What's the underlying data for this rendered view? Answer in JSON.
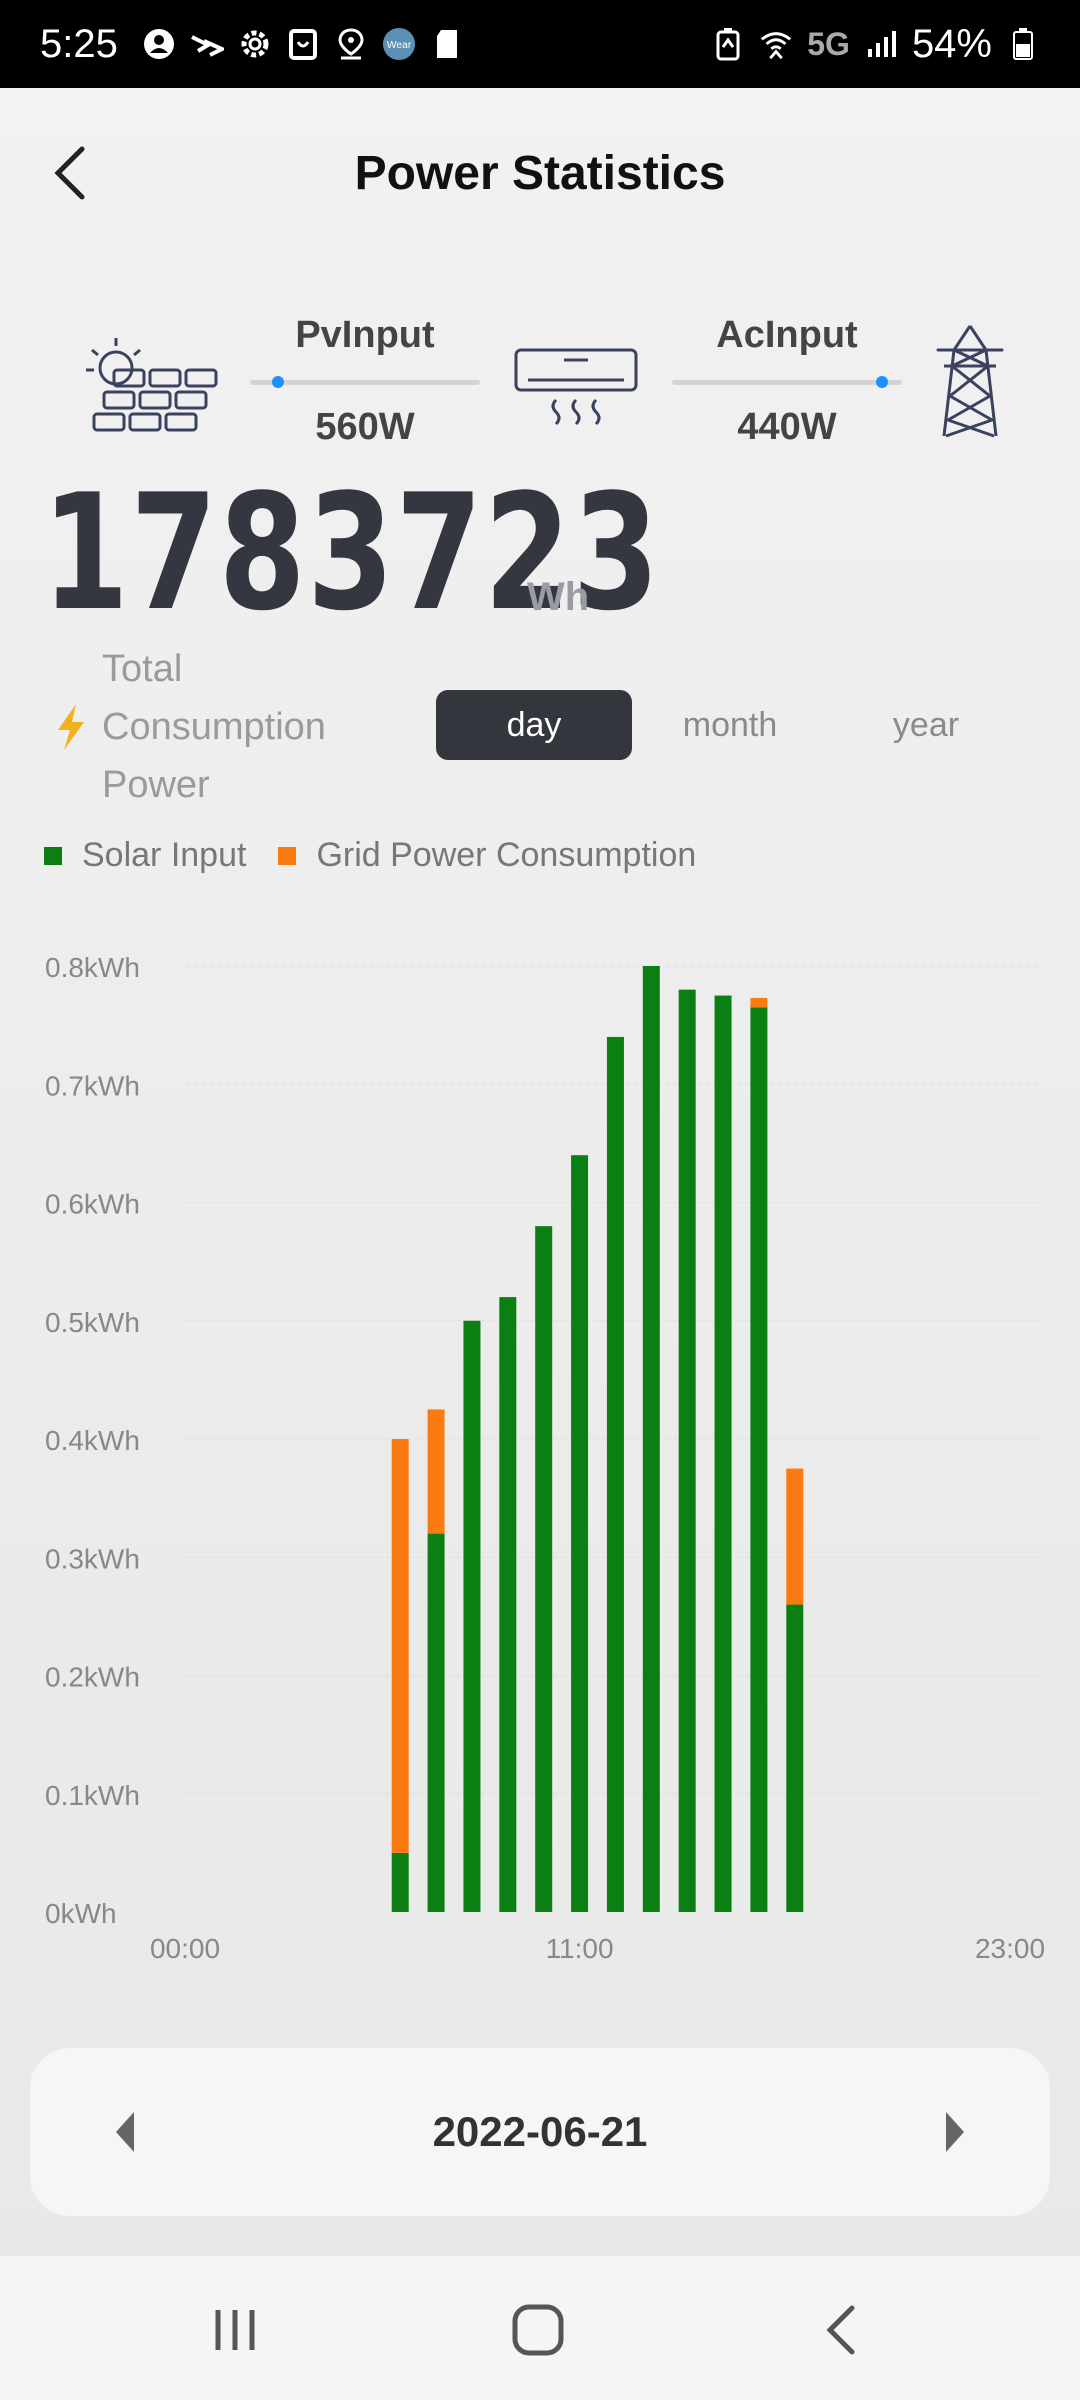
{
  "status_bar": {
    "time": "5:25",
    "network": "5G",
    "battery": "54%",
    "icons": [
      "account-icon",
      "sync-icon",
      "settings-icon",
      "clipboard-icon",
      "location-icon",
      "wear-icon",
      "sd-card-icon"
    ],
    "wear_label": "Wear",
    "right_icons": [
      "battery-saver-icon",
      "wifi-icon",
      "signal-icon",
      "battery-icon"
    ]
  },
  "header": {
    "title": "Power Statistics",
    "back_icon": "chevron-left-icon"
  },
  "flow": {
    "pv_label": "PvInput",
    "pv_value": "560W",
    "ac_label": "AcInput",
    "ac_value": "440W",
    "solar_icon": "solar-panel-icon",
    "load_icon": "air-conditioner-icon",
    "grid_icon": "power-tower-icon"
  },
  "total": {
    "value": "1783723",
    "unit": "Wh",
    "label": "Total Consumption Power"
  },
  "tabs": [
    {
      "label": "day",
      "active": true
    },
    {
      "label": "month",
      "active": false
    },
    {
      "label": "year",
      "active": false
    }
  ],
  "colors": {
    "solar": "#0b7f12",
    "grid": "#fb7b12",
    "accent_dark": "#33363d",
    "dot_blue": "#1e90ff",
    "bolt": "#f2b21b"
  },
  "chart_data": {
    "type": "bar",
    "stacked": true,
    "legend": [
      {
        "name": "Solar Input",
        "color": "#0b7f12"
      },
      {
        "name": "Grid Power Consumption",
        "color": "#fb7b12"
      }
    ],
    "y_tick_labels": [
      "0kWh",
      "0.1kWh",
      "0.2kWh",
      "0.3kWh",
      "0.4kWh",
      "0.5kWh",
      "0.6kWh",
      "0.7kWh",
      "0.8kWh"
    ],
    "ylim": [
      0,
      0.8
    ],
    "x_tick_labels": [
      "00:00",
      "11:00",
      "23:00"
    ],
    "xlim": [
      0,
      23
    ],
    "hours": [
      6,
      7,
      8,
      9,
      10,
      11,
      12,
      13,
      14,
      15,
      16,
      17
    ],
    "series": [
      {
        "name": "Solar Input",
        "values": [
          0.05,
          0.32,
          0.5,
          0.52,
          0.58,
          0.64,
          0.74,
          0.8,
          0.78,
          0.775,
          0.765,
          0.26
        ]
      },
      {
        "name": "Grid Power Consumption",
        "values": [
          0.35,
          0.105,
          0,
          0,
          0,
          0,
          0,
          0,
          0,
          0,
          0.008,
          0.115
        ]
      }
    ]
  },
  "date_selector": {
    "date": "2022-06-21",
    "prev_icon": "triangle-left-icon",
    "next_icon": "triangle-right-icon"
  },
  "nav_bar": {
    "recents_icon": "recents-icon",
    "home_icon": "home-icon",
    "back_icon": "back-icon"
  }
}
